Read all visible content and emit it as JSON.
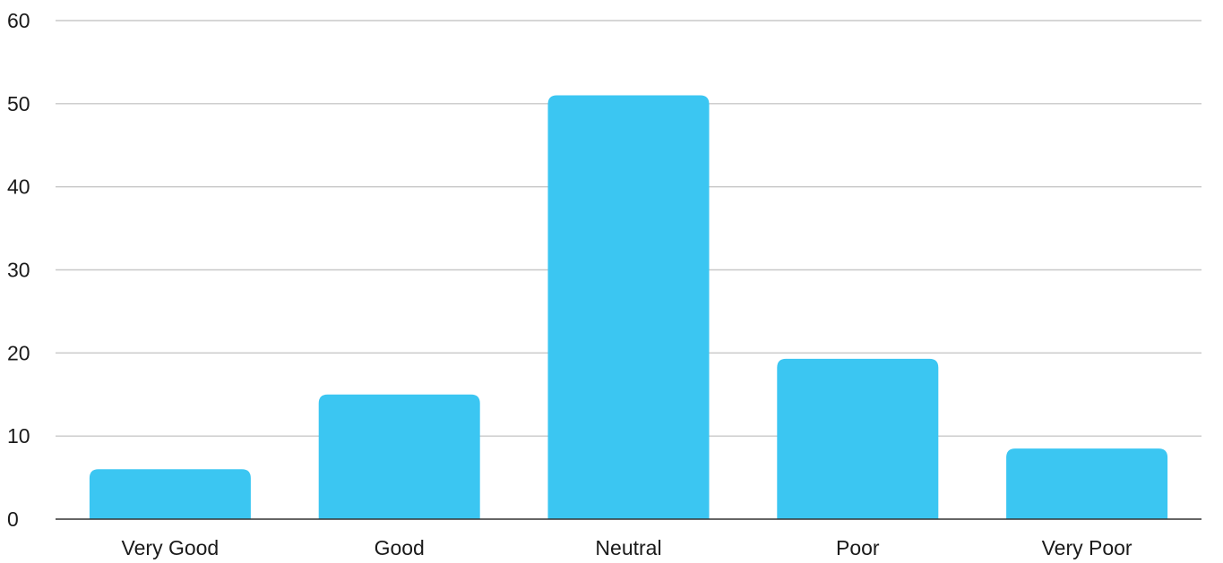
{
  "chart_data": {
    "type": "bar",
    "title": "",
    "xlabel": "",
    "ylabel": "",
    "categories": [
      "Very Good",
      "Good",
      "Neutral",
      "Poor",
      "Very Poor"
    ],
    "values": [
      6,
      15,
      51,
      19.3,
      8.5
    ],
    "ylim": [
      0,
      60
    ],
    "yticks": [
      0,
      10,
      20,
      30,
      40,
      50,
      60
    ],
    "ytick_labels": [
      "0",
      "10",
      "20",
      "30",
      "40",
      "50",
      "60"
    ],
    "grid": true,
    "legend": "none",
    "bar_color": "#3bc6f2",
    "grid_color": "#c8c8c8",
    "baseline_color": "#333333",
    "text_color": "#1a1a1a"
  }
}
